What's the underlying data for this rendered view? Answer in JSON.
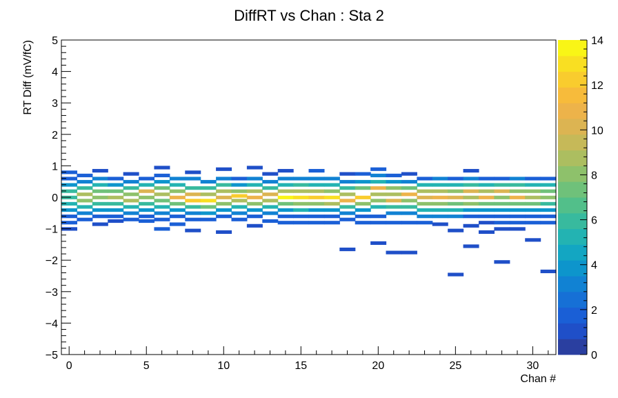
{
  "chart_data": {
    "type": "heatmap",
    "title": "DiffRT vs Chan : Sta 2",
    "xlabel": "Chan #",
    "ylabel": "RT Diff (mV/fC)",
    "x_range": [
      -0.5,
      31.5
    ],
    "y_range": [
      -5,
      5
    ],
    "x_major_ticks": [
      0,
      5,
      10,
      15,
      20,
      25,
      30
    ],
    "x_tick_labels": [
      "0",
      "5",
      "10",
      "15",
      "20",
      "25",
      "30"
    ],
    "y_major_ticks": [
      -5,
      -4,
      -3,
      -2,
      -1,
      0,
      1,
      2,
      3,
      4,
      5
    ],
    "y_tick_labels": [
      "−5",
      "−4",
      "−3",
      "−2",
      "−1",
      "0",
      "1",
      "2",
      "3",
      "4",
      "5"
    ],
    "z_range": [
      0,
      14
    ],
    "z_ticks": [
      0,
      2,
      4,
      6,
      8,
      10,
      12,
      14
    ],
    "z_tick_labels": [
      "0",
      "2",
      "4",
      "6",
      "8",
      "10",
      "12",
      "14"
    ],
    "colorbar_colors": [
      "#2a3fa0",
      "#1f4fc8",
      "#1a5fd6",
      "#1670d6",
      "#1182d3",
      "#0d95cc",
      "#13a6c2",
      "#23b3b2",
      "#38ba9e",
      "#52bf8a",
      "#6fc17a",
      "#8ec16b",
      "#acbe60",
      "#c6b958",
      "#dcb452",
      "#edb34a",
      "#f7bb3b",
      "#f9cc2e",
      "#f9df22",
      "#f9f516"
    ],
    "bin_width_y": 0.1,
    "cells": [
      [
        0,
        0.8,
        2
      ],
      [
        0,
        0.6,
        2
      ],
      [
        0,
        0.4,
        4
      ],
      [
        0,
        0.2,
        6
      ],
      [
        0,
        0.0,
        6
      ],
      [
        0,
        -0.2,
        5
      ],
      [
        0,
        -0.4,
        4
      ],
      [
        0,
        -0.6,
        2
      ],
      [
        0,
        -0.8,
        2
      ],
      [
        0,
        -1.0,
        1
      ],
      [
        1,
        0.7,
        2
      ],
      [
        1,
        0.5,
        3
      ],
      [
        1,
        0.3,
        6
      ],
      [
        1,
        0.1,
        9
      ],
      [
        1,
        -0.1,
        8
      ],
      [
        1,
        -0.3,
        5
      ],
      [
        1,
        -0.5,
        3
      ],
      [
        1,
        -0.7,
        2
      ],
      [
        2,
        0.85,
        1
      ],
      [
        2,
        0.6,
        3
      ],
      [
        2,
        0.4,
        5
      ],
      [
        2,
        0.2,
        7
      ],
      [
        2,
        0.0,
        8
      ],
      [
        2,
        -0.2,
        6
      ],
      [
        2,
        -0.4,
        4
      ],
      [
        2,
        -0.6,
        2
      ],
      [
        2,
        -0.85,
        1
      ],
      [
        3,
        0.6,
        2
      ],
      [
        3,
        0.4,
        4
      ],
      [
        3,
        0.2,
        7
      ],
      [
        3,
        0.0,
        9
      ],
      [
        3,
        -0.2,
        6
      ],
      [
        3,
        -0.4,
        4
      ],
      [
        3,
        -0.6,
        2
      ],
      [
        3,
        -0.75,
        1
      ],
      [
        4,
        0.75,
        1
      ],
      [
        4,
        0.5,
        3
      ],
      [
        4,
        0.3,
        6
      ],
      [
        4,
        0.1,
        8
      ],
      [
        4,
        -0.1,
        9
      ],
      [
        4,
        -0.3,
        5
      ],
      [
        4,
        -0.5,
        3
      ],
      [
        4,
        -0.7,
        2
      ],
      [
        5,
        0.6,
        2
      ],
      [
        5,
        0.4,
        5
      ],
      [
        5,
        0.2,
        10
      ],
      [
        5,
        0.0,
        8
      ],
      [
        5,
        -0.2,
        6
      ],
      [
        5,
        -0.4,
        4
      ],
      [
        5,
        -0.6,
        2
      ],
      [
        5,
        -0.75,
        2
      ],
      [
        6,
        0.95,
        1
      ],
      [
        6,
        0.7,
        2
      ],
      [
        6,
        0.5,
        4
      ],
      [
        6,
        0.3,
        7
      ],
      [
        6,
        0.1,
        9
      ],
      [
        6,
        -0.1,
        7
      ],
      [
        6,
        -0.3,
        5
      ],
      [
        6,
        -0.5,
        3
      ],
      [
        6,
        -0.7,
        2
      ],
      [
        6,
        -1.0,
        2
      ],
      [
        7,
        0.6,
        3
      ],
      [
        7,
        0.4,
        5
      ],
      [
        7,
        0.2,
        8
      ],
      [
        7,
        0.0,
        11
      ],
      [
        7,
        -0.2,
        7
      ],
      [
        7,
        -0.4,
        4
      ],
      [
        7,
        -0.6,
        2
      ],
      [
        7,
        -0.85,
        2
      ],
      [
        8,
        0.8,
        1
      ],
      [
        8,
        0.6,
        3
      ],
      [
        8,
        0.3,
        6
      ],
      [
        8,
        0.1,
        10
      ],
      [
        8,
        -0.1,
        12
      ],
      [
        8,
        -0.3,
        6
      ],
      [
        8,
        -0.5,
        3
      ],
      [
        8,
        -0.7,
        2
      ],
      [
        8,
        -1.05,
        1
      ],
      [
        9,
        0.5,
        3
      ],
      [
        9,
        0.3,
        6
      ],
      [
        9,
        0.1,
        9
      ],
      [
        9,
        -0.1,
        13
      ],
      [
        9,
        -0.3,
        7
      ],
      [
        9,
        -0.5,
        4
      ],
      [
        9,
        -0.7,
        2
      ],
      [
        10,
        0.9,
        1
      ],
      [
        10,
        0.6,
        3
      ],
      [
        10,
        0.4,
        6
      ],
      [
        10,
        0.2,
        9
      ],
      [
        10,
        0.0,
        10
      ],
      [
        10,
        -0.2,
        8
      ],
      [
        10,
        -0.4,
        4
      ],
      [
        10,
        -0.6,
        2
      ],
      [
        10,
        -1.1,
        1
      ],
      [
        11,
        0.6,
        2
      ],
      [
        11,
        0.4,
        4
      ],
      [
        11,
        0.2,
        8
      ],
      [
        11,
        0.05,
        12
      ],
      [
        11,
        -0.1,
        9
      ],
      [
        11,
        -0.3,
        5
      ],
      [
        11,
        -0.5,
        3
      ],
      [
        11,
        -0.7,
        2
      ],
      [
        12,
        0.95,
        1
      ],
      [
        12,
        0.6,
        3
      ],
      [
        12,
        0.4,
        5
      ],
      [
        12,
        0.2,
        9
      ],
      [
        12,
        0.0,
        11
      ],
      [
        12,
        -0.2,
        8
      ],
      [
        12,
        -0.4,
        4
      ],
      [
        12,
        -0.6,
        2
      ],
      [
        12,
        -0.9,
        1
      ],
      [
        13,
        0.75,
        1
      ],
      [
        13,
        0.5,
        3
      ],
      [
        13,
        0.3,
        6
      ],
      [
        13,
        0.1,
        10
      ],
      [
        13,
        -0.1,
        9
      ],
      [
        13,
        -0.3,
        5
      ],
      [
        13,
        -0.5,
        3
      ],
      [
        13,
        -0.75,
        2
      ],
      [
        14,
        0.85,
        1
      ],
      [
        14,
        0.6,
        3
      ],
      [
        14,
        0.4,
        5
      ],
      [
        14,
        0.2,
        9
      ],
      [
        14,
        0.0,
        14
      ],
      [
        14,
        -0.2,
        7
      ],
      [
        14,
        -0.4,
        4
      ],
      [
        14,
        -0.6,
        2
      ],
      [
        14,
        -0.8,
        2
      ],
      [
        15,
        0.6,
        3
      ],
      [
        15,
        0.4,
        6
      ],
      [
        15,
        0.2,
        9
      ],
      [
        15,
        0.0,
        13
      ],
      [
        15,
        -0.2,
        8
      ],
      [
        15,
        -0.4,
        5
      ],
      [
        15,
        -0.6,
        2
      ],
      [
        15,
        -0.8,
        2
      ],
      [
        16,
        0.85,
        2
      ],
      [
        16,
        0.6,
        3
      ],
      [
        16,
        0.4,
        5
      ],
      [
        16,
        0.2,
        9
      ],
      [
        16,
        0.0,
        12
      ],
      [
        16,
        -0.2,
        8
      ],
      [
        16,
        -0.4,
        4
      ],
      [
        16,
        -0.6,
        2
      ],
      [
        16,
        -0.8,
        2
      ],
      [
        17,
        0.6,
        3
      ],
      [
        17,
        0.4,
        5
      ],
      [
        17,
        0.2,
        8
      ],
      [
        17,
        0.0,
        13
      ],
      [
        17,
        -0.2,
        9
      ],
      [
        17,
        -0.4,
        4
      ],
      [
        17,
        -0.6,
        2
      ],
      [
        17,
        -0.8,
        2
      ],
      [
        18,
        0.75,
        1
      ],
      [
        18,
        0.5,
        3
      ],
      [
        18,
        0.3,
        6
      ],
      [
        18,
        0.1,
        9
      ],
      [
        18,
        -0.1,
        11
      ],
      [
        18,
        -0.3,
        6
      ],
      [
        18,
        -0.5,
        3
      ],
      [
        18,
        -0.7,
        2
      ],
      [
        18,
        -1.65,
        1
      ],
      [
        19,
        0.75,
        2
      ],
      [
        19,
        0.5,
        4
      ],
      [
        19,
        0.3,
        7
      ],
      [
        19,
        0.0,
        12
      ],
      [
        19,
        -0.2,
        8
      ],
      [
        19,
        -0.4,
        4
      ],
      [
        19,
        -0.6,
        2
      ],
      [
        19,
        -0.8,
        2
      ],
      [
        20,
        0.9,
        2
      ],
      [
        20,
        0.7,
        3
      ],
      [
        20,
        0.5,
        5
      ],
      [
        20,
        0.3,
        11
      ],
      [
        20,
        0.1,
        9
      ],
      [
        20,
        -0.1,
        8
      ],
      [
        20,
        -0.3,
        5
      ],
      [
        20,
        -0.6,
        2
      ],
      [
        20,
        -0.8,
        2
      ],
      [
        20,
        -1.45,
        1
      ],
      [
        21,
        0.7,
        2
      ],
      [
        21,
        0.5,
        4
      ],
      [
        21,
        0.3,
        8
      ],
      [
        21,
        0.1,
        9
      ],
      [
        21,
        -0.1,
        10
      ],
      [
        21,
        -0.3,
        6
      ],
      [
        21,
        -0.5,
        3
      ],
      [
        21,
        -0.8,
        2
      ],
      [
        21,
        -1.75,
        1
      ],
      [
        22,
        0.75,
        1
      ],
      [
        22,
        0.5,
        3
      ],
      [
        22,
        0.3,
        7
      ],
      [
        22,
        0.1,
        11
      ],
      [
        22,
        -0.1,
        8
      ],
      [
        22,
        -0.3,
        6
      ],
      [
        22,
        -0.5,
        3
      ],
      [
        22,
        -0.8,
        2
      ],
      [
        22,
        -1.75,
        1
      ],
      [
        23,
        0.6,
        2
      ],
      [
        23,
        0.4,
        5
      ],
      [
        23,
        0.2,
        9
      ],
      [
        23,
        0.0,
        10
      ],
      [
        23,
        -0.2,
        8
      ],
      [
        23,
        -0.4,
        5
      ],
      [
        23,
        -0.6,
        3
      ],
      [
        23,
        -0.8,
        2
      ],
      [
        24,
        0.6,
        3
      ],
      [
        24,
        0.4,
        5
      ],
      [
        24,
        0.2,
        9
      ],
      [
        24,
        0.0,
        11
      ],
      [
        24,
        -0.2,
        8
      ],
      [
        24,
        -0.4,
        5
      ],
      [
        24,
        -0.6,
        3
      ],
      [
        24,
        -0.85,
        1
      ],
      [
        25,
        0.6,
        2
      ],
      [
        25,
        0.4,
        5
      ],
      [
        25,
        0.2,
        8
      ],
      [
        25,
        0.0,
        10
      ],
      [
        25,
        -0.2,
        7
      ],
      [
        25,
        -0.4,
        5
      ],
      [
        25,
        -0.6,
        3
      ],
      [
        25,
        -1.05,
        1
      ],
      [
        25,
        -2.45,
        1
      ],
      [
        26,
        0.85,
        1
      ],
      [
        26,
        0.6,
        3
      ],
      [
        26,
        0.4,
        6
      ],
      [
        26,
        0.2,
        10
      ],
      [
        26,
        0.0,
        9
      ],
      [
        26,
        -0.2,
        8
      ],
      [
        26,
        -0.4,
        4
      ],
      [
        26,
        -0.6,
        2
      ],
      [
        26,
        -0.9,
        1
      ],
      [
        26,
        -1.55,
        1
      ],
      [
        27,
        0.6,
        2
      ],
      [
        27,
        0.4,
        5
      ],
      [
        27,
        0.2,
        9
      ],
      [
        27,
        0.0,
        11
      ],
      [
        27,
        -0.2,
        7
      ],
      [
        27,
        -0.4,
        4
      ],
      [
        27,
        -0.6,
        2
      ],
      [
        27,
        -0.8,
        1
      ],
      [
        27,
        -1.1,
        1
      ],
      [
        28,
        0.6,
        2
      ],
      [
        28,
        0.4,
        6
      ],
      [
        28,
        0.2,
        10
      ],
      [
        28,
        0.0,
        8
      ],
      [
        28,
        -0.2,
        7
      ],
      [
        28,
        -0.4,
        4
      ],
      [
        28,
        -0.6,
        2
      ],
      [
        28,
        -0.8,
        2
      ],
      [
        28,
        -1.0,
        1
      ],
      [
        28,
        -2.05,
        1
      ],
      [
        29,
        0.6,
        3
      ],
      [
        29,
        0.4,
        6
      ],
      [
        29,
        0.2,
        8
      ],
      [
        29,
        0.0,
        11
      ],
      [
        29,
        -0.2,
        7
      ],
      [
        29,
        -0.4,
        4
      ],
      [
        29,
        -0.6,
        2
      ],
      [
        29,
        -0.8,
        2
      ],
      [
        29,
        -1.0,
        1
      ],
      [
        30,
        0.6,
        2
      ],
      [
        30,
        0.4,
        5
      ],
      [
        30,
        0.2,
        8
      ],
      [
        30,
        0.0,
        9
      ],
      [
        30,
        -0.2,
        7
      ],
      [
        30,
        -0.4,
        4
      ],
      [
        30,
        -0.6,
        2
      ],
      [
        30,
        -0.8,
        2
      ],
      [
        30,
        -1.35,
        1
      ],
      [
        31,
        0.6,
        2
      ],
      [
        31,
        0.4,
        5
      ],
      [
        31,
        0.2,
        7
      ],
      [
        31,
        0.0,
        8
      ],
      [
        31,
        -0.2,
        6
      ],
      [
        31,
        -0.4,
        4
      ],
      [
        31,
        -0.6,
        2
      ],
      [
        31,
        -0.8,
        2
      ],
      [
        31,
        -2.35,
        1
      ]
    ]
  }
}
